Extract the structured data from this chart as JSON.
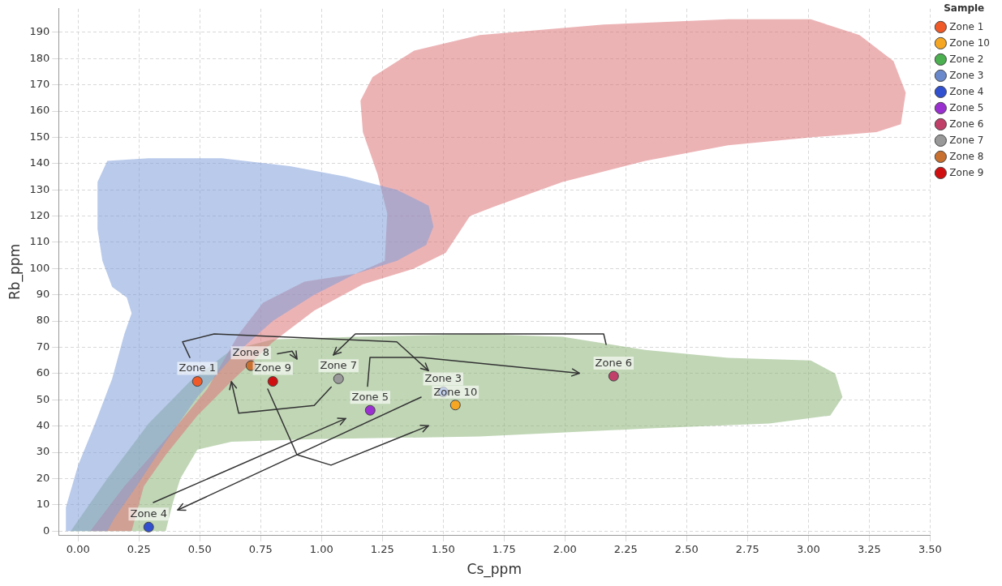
{
  "chart_data": {
    "type": "scatter",
    "xlabel": "Cs_ppm",
    "ylabel": "Rb_ppm",
    "legend_title": "Sample",
    "legend": "right",
    "grid": true,
    "xlim": [
      -0.08,
      3.5
    ],
    "ylim": [
      -1.5,
      199
    ],
    "xticks": [
      {
        "value": 0,
        "label": "0.00"
      },
      {
        "value": 0.25,
        "label": "0.25"
      },
      {
        "value": 0.5,
        "label": "0.50"
      },
      {
        "value": 0.75,
        "label": "0.75"
      },
      {
        "value": 1,
        "label": "1.00"
      },
      {
        "value": 1.25,
        "label": "1.25"
      },
      {
        "value": 1.5,
        "label": "1.50"
      },
      {
        "value": 1.75,
        "label": "1.75"
      },
      {
        "value": 2,
        "label": "2.00"
      },
      {
        "value": 2.25,
        "label": "2.25"
      },
      {
        "value": 2.5,
        "label": "2.50"
      },
      {
        "value": 2.75,
        "label": "2.75"
      },
      {
        "value": 3,
        "label": "3.00"
      },
      {
        "value": 3.25,
        "label": "3.25"
      },
      {
        "value": 3.5,
        "label": "3.50"
      }
    ],
    "yticks": [
      0,
      10,
      20,
      30,
      40,
      50,
      60,
      70,
      80,
      90,
      100,
      110,
      120,
      130,
      140,
      150,
      160,
      170,
      180,
      190
    ],
    "series": [
      {
        "type": "area",
        "color": "#7f9fd8",
        "x": [
          -0.05,
          -0.05,
          0,
          0.07,
          0.14,
          0.19,
          0.22,
          0.2,
          0.14,
          0.1,
          0.08,
          0.08,
          0.12,
          0.29,
          0.59,
          0.87,
          1.1,
          1.31,
          1.44,
          1.46,
          1.43,
          1.31,
          1.14,
          0.97,
          0.8,
          0.63,
          0.49,
          0.36,
          0.24,
          0.15,
          0.12
        ],
        "values": [
          0,
          9,
          25,
          41,
          58,
          75,
          83,
          89,
          93,
          103,
          115,
          133,
          141,
          142,
          142,
          139,
          135,
          130,
          124,
          116,
          109,
          103,
          98,
          90,
          80,
          66,
          51,
          34,
          17,
          5,
          0
        ]
      },
      {
        "type": "area",
        "color": "#dc7479",
        "x": [
          0.05,
          0.19,
          0.36,
          0.53,
          0.66,
          0.76,
          0.93,
          1.14,
          1.26,
          1.27,
          1.23,
          1.17,
          1.16,
          1.21,
          1.38,
          1.65,
          2.16,
          2.67,
          3.01,
          3.21,
          3.35,
          3.4,
          3.38,
          3.28,
          3.01,
          2.67,
          2.33,
          1.99,
          1.72,
          1.61,
          1.51,
          1.38,
          1.17,
          0.97,
          0.8,
          0.63,
          0.49,
          0.36,
          0.27,
          0.22
        ],
        "values": [
          0,
          17,
          35,
          54,
          75,
          87,
          95,
          98,
          103,
          121,
          136,
          152,
          164,
          173,
          183,
          189,
          193,
          195,
          195,
          189,
          179,
          167,
          155,
          152,
          150,
          147,
          141,
          133,
          124,
          120,
          106,
          100,
          94,
          84,
          72,
          57,
          44,
          29,
          17,
          0
        ]
      },
      {
        "type": "area",
        "color": "#8db578",
        "x": [
          -0.03,
          0.12,
          0.29,
          0.46,
          0.63,
          0.8,
          1.14,
          1.65,
          1.99,
          2.33,
          2.67,
          3.01,
          3.11,
          3.14,
          3.09,
          2.84,
          2.33,
          1.65,
          0.97,
          0.63,
          0.49,
          0.42,
          0.39,
          0.36
        ],
        "values": [
          0,
          20,
          41,
          57,
          69,
          73,
          74,
          75,
          74,
          69,
          66,
          65,
          60,
          51,
          44,
          41,
          39,
          36,
          35,
          34,
          31,
          20,
          11,
          0
        ]
      },
      {
        "name": "Zone 1",
        "color": "#f05a28",
        "marker": "circle",
        "x": [
          0.49
        ],
        "values": [
          57
        ]
      },
      {
        "name": "Zone 10",
        "color": "#f5a623",
        "marker": "circle",
        "x": [
          1.55
        ],
        "values": [
          48
        ]
      },
      {
        "name": "Zone 2",
        "color": "#4caf50",
        "marker": "circle"
      },
      {
        "name": "Zone 3",
        "color": "#6a89cc",
        "marker": "circle",
        "x": [
          1.5
        ],
        "values": [
          53
        ]
      },
      {
        "name": "Zone 4",
        "color": "#3050d0",
        "marker": "circle",
        "x": [
          0.29
        ],
        "values": [
          1.5
        ]
      },
      {
        "name": "Zone 5",
        "color": "#9b30d0",
        "marker": "circle",
        "x": [
          1.2
        ],
        "values": [
          46
        ]
      },
      {
        "name": "Zone 6",
        "color": "#c0406a",
        "marker": "circle",
        "x": [
          2.2
        ],
        "values": [
          59
        ]
      },
      {
        "name": "Zone 7",
        "color": "#999999",
        "marker": "circle",
        "x": [
          1.07
        ],
        "values": [
          58
        ]
      },
      {
        "name": "Zone 8",
        "color": "#c87030",
        "marker": "circle",
        "x": [
          0.71
        ],
        "values": [
          63
        ]
      },
      {
        "name": "Zone 9",
        "color": "#d01010",
        "marker": "circle",
        "x": [
          0.8
        ],
        "values": [
          57
        ]
      }
    ]
  }
}
